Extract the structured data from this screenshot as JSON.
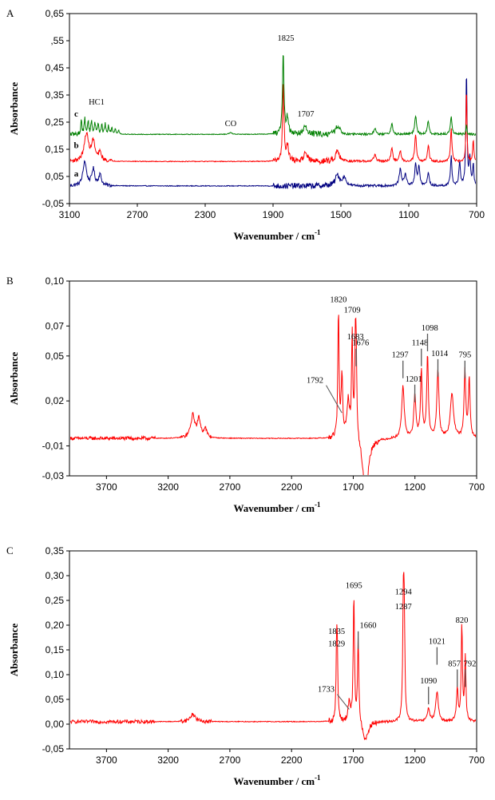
{
  "chart_data": [
    {
      "type": "line",
      "panel_label": "A",
      "xlabel": "Wavenumber / cm",
      "xlabel_sup": "-1",
      "ylabel": "Absorbance",
      "xlim": [
        3100,
        700
      ],
      "ylim": [
        -0.05,
        0.65
      ],
      "xticks": [
        3100,
        2700,
        2300,
        1900,
        1500,
        1100,
        700
      ],
      "xtick_labels": [
        "3100",
        "2700",
        "2300",
        "1900",
        "1500",
        "1100",
        "700"
      ],
      "yticks": [
        -0.05,
        0.05,
        0.15,
        0.25,
        0.35,
        0.45,
        0.55,
        0.65
      ],
      "ytick_labels": [
        "-0,05",
        "0,05",
        "0,15",
        "0,25",
        "0,35",
        "0,45",
        ",55",
        "0,65"
      ],
      "grid": false,
      "series": [
        {
          "name": "a",
          "color": "#000080",
          "baseline": 0.015,
          "peaks": [
            [
              3010,
              0.09,
              12
            ],
            [
              2960,
              0.06,
              10
            ],
            [
              2920,
              0.04,
              10
            ],
            [
              1520,
              0.04,
              15
            ],
            [
              1480,
              0.03,
              12
            ],
            [
              1150,
              0.06,
              8
            ],
            [
              1120,
              0.04,
              8
            ],
            [
              1060,
              0.08,
              6
            ],
            [
              1040,
              0.07,
              6
            ],
            [
              985,
              0.05,
              6
            ],
            [
              850,
              0.11,
              5
            ],
            [
              800,
              0.09,
              5
            ],
            [
              760,
              0.43,
              4
            ],
            [
              740,
              0.1,
              5
            ],
            [
              720,
              0.08,
              4
            ]
          ]
        },
        {
          "name": "b",
          "color": "#ff0000",
          "baseline": 0.105,
          "peaks": [
            [
              3000,
              0.1,
              15
            ],
            [
              2960,
              0.07,
              12
            ],
            [
              2920,
              0.03,
              10
            ],
            [
              1840,
              0.29,
              5
            ],
            [
              1815,
              0.06,
              8
            ],
            [
              1710,
              0.035,
              12
            ],
            [
              1520,
              0.04,
              15
            ],
            [
              1300,
              0.025,
              8
            ],
            [
              1200,
              0.05,
              6
            ],
            [
              1150,
              0.04,
              6
            ],
            [
              1060,
              0.1,
              6
            ],
            [
              985,
              0.06,
              6
            ],
            [
              850,
              0.12,
              5
            ],
            [
              760,
              0.29,
              3
            ],
            [
              720,
              0.08,
              4
            ]
          ]
        },
        {
          "name": "c",
          "color": "#008000",
          "baseline": 0.205,
          "peaks": [
            [
              3030,
              0.05,
              4
            ],
            [
              3010,
              0.055,
              4
            ],
            [
              2990,
              0.05,
              4
            ],
            [
              2970,
              0.05,
              4
            ],
            [
              2950,
              0.045,
              4
            ],
            [
              2930,
              0.04,
              4
            ],
            [
              2910,
              0.035,
              4
            ],
            [
              2890,
              0.035,
              4
            ],
            [
              2870,
              0.03,
              4
            ],
            [
              2850,
              0.025,
              4
            ],
            [
              2830,
              0.02,
              4
            ],
            [
              2810,
              0.015,
              4
            ],
            [
              2150,
              0.006,
              10
            ],
            [
              1840,
              0.3,
              5
            ],
            [
              1815,
              0.06,
              8
            ],
            [
              1710,
              0.03,
              12
            ],
            [
              1520,
              0.03,
              15
            ],
            [
              1300,
              0.02,
              8
            ],
            [
              1200,
              0.04,
              6
            ],
            [
              1060,
              0.07,
              6
            ],
            [
              985,
              0.05,
              6
            ],
            [
              850,
              0.07,
              5
            ],
            [
              760,
              0.04,
              3
            ]
          ]
        }
      ],
      "annotations": [
        {
          "text": "1825",
          "x": 1825,
          "y": 0.55
        },
        {
          "text": "1707",
          "x": 1707,
          "y": 0.27
        },
        {
          "text": "HC1",
          "x": 2940,
          "y": 0.315
        },
        {
          "text": "CO",
          "x": 2150,
          "y": 0.235
        },
        {
          "text": "c",
          "x": 3060,
          "y": 0.27
        },
        {
          "text": "b",
          "x": 3060,
          "y": 0.155
        },
        {
          "text": "a",
          "x": 3060,
          "y": 0.05
        }
      ]
    },
    {
      "type": "line",
      "panel_label": "B",
      "xlabel": "Wavenumber / cm",
      "xlabel_sup": "-1",
      "ylabel": "Absorbance",
      "xlim": [
        4000,
        700
      ],
      "ylim": [
        -0.03,
        0.1
      ],
      "xticks": [
        3700,
        3200,
        2700,
        2200,
        1700,
        1200,
        700
      ],
      "xtick_labels": [
        "3700",
        "3200",
        "2700",
        "2200",
        "1700",
        "1200",
        "700"
      ],
      "yticks": [
        -0.03,
        -0.01,
        0.02,
        0.05,
        0.07,
        0.1
      ],
      "ytick_labels": [
        "-0,03",
        "-0,01",
        "0,02",
        "0,05",
        "0,07",
        "0,10"
      ],
      "grid": false,
      "series": [
        {
          "name": "",
          "color": "#ff0000",
          "baseline": -0.005,
          "peaks": [
            [
              3000,
              0.015,
              20
            ],
            [
              2950,
              0.012,
              15
            ],
            [
              2900,
              0.006,
              15
            ],
            [
              1820,
              0.083,
              6
            ],
            [
              1792,
              0.04,
              8
            ],
            [
              1740,
              0.025,
              12
            ],
            [
              1709,
              0.068,
              6
            ],
            [
              1683,
              0.055,
              6
            ],
            [
              1676,
              0.05,
              6
            ],
            [
              1297,
              0.035,
              12
            ],
            [
              1201,
              0.028,
              10
            ],
            [
              1148,
              0.045,
              8
            ],
            [
              1098,
              0.055,
              8
            ],
            [
              1014,
              0.045,
              10
            ],
            [
              900,
              0.03,
              15
            ],
            [
              795,
              0.045,
              8
            ],
            [
              760,
              0.04,
              8
            ]
          ],
          "dips": [
            [
              1600,
              -0.04,
              25
            ]
          ]
        }
      ],
      "annotations": [
        {
          "text": "1820",
          "x": 1820,
          "y": 0.086
        },
        {
          "text": "1709",
          "x": 1709,
          "y": 0.079
        },
        {
          "text": "1683",
          "x": 1683,
          "y": 0.061
        },
        {
          "text": "1676",
          "x": 1640,
          "y": 0.057
        },
        {
          "text": "1792",
          "x": 2010,
          "y": 0.032
        },
        {
          "text": "1297",
          "x": 1320,
          "y": 0.049
        },
        {
          "text": "1148",
          "x": 1160,
          "y": 0.057
        },
        {
          "text": "1098",
          "x": 1080,
          "y": 0.067
        },
        {
          "text": "1014",
          "x": 1000,
          "y": 0.05
        },
        {
          "text": "1201",
          "x": 1210,
          "y": 0.033
        },
        {
          "text": "795",
          "x": 795,
          "y": 0.049
        }
      ]
    },
    {
      "type": "line",
      "panel_label": "C",
      "xlabel": "Wavenumber / cm",
      "xlabel_sup": "-1",
      "ylabel": "Absorbance",
      "xlim": [
        4000,
        700
      ],
      "ylim": [
        -0.05,
        0.35
      ],
      "xticks": [
        3700,
        3200,
        2700,
        2200,
        1700,
        1200,
        700
      ],
      "xtick_labels": [
        "3700",
        "3200",
        "2700",
        "2200",
        "1700",
        "1200",
        "700"
      ],
      "yticks": [
        -0.05,
        0.0,
        0.05,
        0.1,
        0.15,
        0.2,
        0.25,
        0.3,
        0.35
      ],
      "ytick_labels": [
        "-0,05",
        "0,00",
        "0,05",
        "0,10",
        "0,15",
        "0,20",
        "0,25",
        "0,30",
        "0,35"
      ],
      "grid": false,
      "series": [
        {
          "name": "",
          "color": "#ff0000",
          "baseline": 0.005,
          "peaks": [
            [
              3000,
              0.015,
              25
            ],
            [
              1835,
              0.14,
              5
            ],
            [
              1829,
              0.12,
              5
            ],
            [
              1733,
              0.04,
              10
            ],
            [
              1695,
              0.255,
              6
            ],
            [
              1660,
              0.17,
              6
            ],
            [
              1294,
              0.215,
              6
            ],
            [
              1287,
              0.19,
              6
            ],
            [
              1090,
              0.025,
              12
            ],
            [
              1021,
              0.06,
              12
            ],
            [
              857,
              0.065,
              8
            ],
            [
              820,
              0.195,
              6
            ],
            [
              792,
              0.13,
              6
            ]
          ],
          "dips": [
            [
              1600,
              -0.04,
              25
            ]
          ]
        }
      ],
      "annotations": [
        {
          "text": "1695",
          "x": 1695,
          "y": 0.275
        },
        {
          "text": "1294",
          "x": 1294,
          "y": 0.262
        },
        {
          "text": "1287",
          "x": 1294,
          "y": 0.232
        },
        {
          "text": "1835",
          "x": 1835,
          "y": 0.182
        },
        {
          "text": "1829",
          "x": 1835,
          "y": 0.157
        },
        {
          "text": "1660",
          "x": 1580,
          "y": 0.194
        },
        {
          "text": "820",
          "x": 820,
          "y": 0.205
        },
        {
          "text": "1021",
          "x": 1021,
          "y": 0.162
        },
        {
          "text": "1733",
          "x": 1920,
          "y": 0.065
        },
        {
          "text": "1090",
          "x": 1090,
          "y": 0.082
        },
        {
          "text": "857",
          "x": 880,
          "y": 0.117
        },
        {
          "text": "792",
          "x": 755,
          "y": 0.117
        }
      ]
    }
  ]
}
